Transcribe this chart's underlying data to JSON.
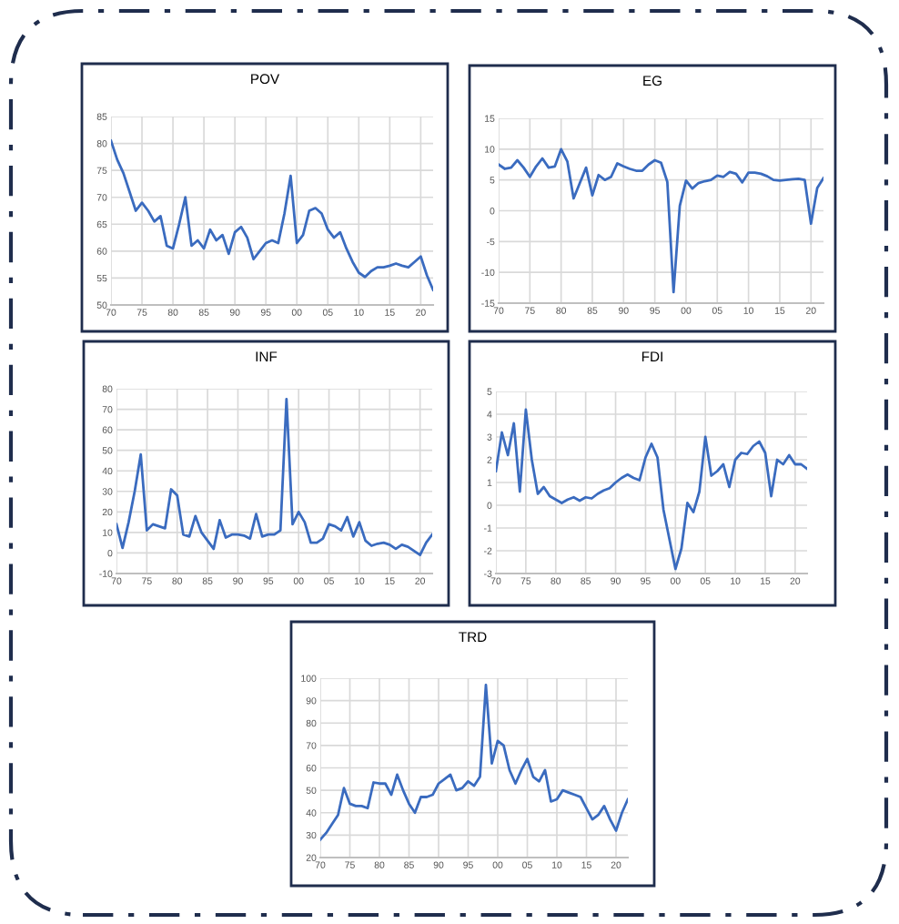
{
  "chart_data": [
    {
      "type": "line",
      "title": "POV",
      "x": [
        1970,
        1971,
        1972,
        1973,
        1974,
        1975,
        1976,
        1977,
        1978,
        1979,
        1980,
        1981,
        1982,
        1983,
        1984,
        1985,
        1986,
        1987,
        1988,
        1989,
        1990,
        1991,
        1992,
        1993,
        1994,
        1995,
        1996,
        1997,
        1998,
        1999,
        2000,
        2001,
        2002,
        2003,
        2004,
        2005,
        2006,
        2007,
        2008,
        2009,
        2010,
        2011,
        2012,
        2013,
        2014,
        2015,
        2016,
        2017,
        2018,
        2019,
        2020,
        2021,
        2022
      ],
      "series": [
        {
          "color": "#3a6bbf",
          "values": [
            80.5,
            77,
            74.5,
            71,
            67.5,
            69,
            67.5,
            65.5,
            66.5,
            61,
            60.5,
            65,
            70,
            61,
            62,
            60.5,
            64,
            62,
            63,
            59.5,
            63.5,
            64.5,
            62.5,
            58.5,
            60,
            61.5,
            62,
            61.5,
            67,
            74,
            61.5,
            63,
            67.5,
            68,
            67,
            64,
            62.5,
            63.5,
            60.5,
            58,
            56,
            55.2,
            56.3,
            57,
            57,
            57.3,
            57.7,
            57.3,
            57,
            58,
            59,
            55.5,
            52.8
          ]
        }
      ],
      "xlim": [
        1970,
        2022
      ],
      "xticks": [
        {
          "value": 1970,
          "label": "70"
        },
        {
          "value": 1975,
          "label": "75"
        },
        {
          "value": 1980,
          "label": "80"
        },
        {
          "value": 1985,
          "label": "85"
        },
        {
          "value": 1990,
          "label": "90"
        },
        {
          "value": 1995,
          "label": "95"
        },
        {
          "value": 2000,
          "label": "00"
        },
        {
          "value": 2005,
          "label": "05"
        },
        {
          "value": 2010,
          "label": "10"
        },
        {
          "value": 2015,
          "label": "15"
        },
        {
          "value": 2020,
          "label": "20"
        }
      ],
      "ylim": [
        50,
        85
      ],
      "yticks": [
        50,
        55,
        60,
        65,
        70,
        75,
        80,
        85
      ],
      "grid": true
    },
    {
      "type": "line",
      "title": "EG",
      "x": [
        1970,
        1971,
        1972,
        1973,
        1974,
        1975,
        1976,
        1977,
        1978,
        1979,
        1980,
        1981,
        1982,
        1983,
        1984,
        1985,
        1986,
        1987,
        1988,
        1989,
        1990,
        1991,
        1992,
        1993,
        1994,
        1995,
        1996,
        1997,
        1998,
        1999,
        2000,
        2001,
        2002,
        2003,
        2004,
        2005,
        2006,
        2007,
        2008,
        2009,
        2010,
        2011,
        2012,
        2013,
        2014,
        2015,
        2016,
        2017,
        2018,
        2019,
        2020,
        2021,
        2022
      ],
      "series": [
        {
          "color": "#3a6bbf",
          "values": [
            7.5,
            6.8,
            7,
            8.2,
            7,
            5.5,
            7.2,
            8.5,
            7,
            7.2,
            10,
            8,
            2,
            4.5,
            7,
            2.5,
            5.8,
            5,
            5.5,
            7.7,
            7.2,
            6.8,
            6.5,
            6.5,
            7.5,
            8.2,
            7.8,
            4.7,
            -13.2,
            0.8,
            4.9,
            3.6,
            4.5,
            4.8,
            5,
            5.7,
            5.5,
            6.3,
            6,
            4.6,
            6.2,
            6.2,
            6,
            5.6,
            5,
            4.9,
            5,
            5.1,
            5.2,
            5,
            -2.1,
            3.7,
            5.3
          ]
        }
      ],
      "xlim": [
        1970,
        2022
      ],
      "xticks": [
        {
          "value": 1970,
          "label": "70"
        },
        {
          "value": 1975,
          "label": "75"
        },
        {
          "value": 1980,
          "label": "80"
        },
        {
          "value": 1985,
          "label": "85"
        },
        {
          "value": 1990,
          "label": "90"
        },
        {
          "value": 1995,
          "label": "95"
        },
        {
          "value": 2000,
          "label": "00"
        },
        {
          "value": 2005,
          "label": "05"
        },
        {
          "value": 2010,
          "label": "10"
        },
        {
          "value": 2015,
          "label": "15"
        },
        {
          "value": 2020,
          "label": "20"
        }
      ],
      "ylim": [
        -15,
        15
      ],
      "yticks": [
        {
          "value": -15,
          "label": "-15"
        },
        {
          "value": -10,
          "label": "-10"
        },
        {
          "value": -5,
          "label": "-5"
        },
        0,
        5,
        10,
        15
      ],
      "grid": true
    },
    {
      "type": "line",
      "title": "INF",
      "x": [
        1970,
        1971,
        1972,
        1973,
        1974,
        1975,
        1976,
        1977,
        1978,
        1979,
        1980,
        1981,
        1982,
        1983,
        1984,
        1985,
        1986,
        1987,
        1988,
        1989,
        1990,
        1991,
        1992,
        1993,
        1994,
        1995,
        1996,
        1997,
        1998,
        1999,
        2000,
        2001,
        2002,
        2003,
        2004,
        2005,
        2006,
        2007,
        2008,
        2009,
        2010,
        2011,
        2012,
        2013,
        2014,
        2015,
        2016,
        2017,
        2018,
        2019,
        2020,
        2021,
        2022
      ],
      "series": [
        {
          "color": "#3a6bbf",
          "values": [
            14,
            2.5,
            15,
            30,
            48,
            11,
            14,
            13,
            12,
            31,
            28,
            9,
            8,
            18,
            10,
            6,
            2,
            16,
            7.5,
            9,
            9,
            8.5,
            7,
            19,
            8,
            9,
            9,
            11,
            75,
            14,
            20,
            15,
            5,
            5,
            7,
            14,
            13,
            11,
            17.5,
            8,
            15,
            6,
            3.5,
            4.5,
            5,
            4,
            2,
            4,
            3,
            1,
            -1,
            5,
            9
          ]
        }
      ],
      "xlim": [
        1970,
        2022
      ],
      "xticks": [
        {
          "value": 1970,
          "label": "70"
        },
        {
          "value": 1975,
          "label": "75"
        },
        {
          "value": 1980,
          "label": "80"
        },
        {
          "value": 1985,
          "label": "85"
        },
        {
          "value": 1990,
          "label": "90"
        },
        {
          "value": 1995,
          "label": "95"
        },
        {
          "value": 2000,
          "label": "00"
        },
        {
          "value": 2005,
          "label": "05"
        },
        {
          "value": 2010,
          "label": "10"
        },
        {
          "value": 2015,
          "label": "15"
        },
        {
          "value": 2020,
          "label": "20"
        }
      ],
      "ylim": [
        -10,
        80
      ],
      "yticks": [
        {
          "value": -10,
          "label": "-10"
        },
        0,
        10,
        20,
        30,
        40,
        50,
        60,
        70,
        80
      ],
      "grid": true
    },
    {
      "type": "line",
      "title": "FDI",
      "x": [
        1970,
        1971,
        1972,
        1973,
        1974,
        1975,
        1976,
        1977,
        1978,
        1979,
        1980,
        1981,
        1982,
        1983,
        1984,
        1985,
        1986,
        1987,
        1988,
        1989,
        1990,
        1991,
        1992,
        1993,
        1994,
        1995,
        1996,
        1997,
        1998,
        1999,
        2000,
        2001,
        2002,
        2003,
        2004,
        2005,
        2006,
        2007,
        2008,
        2009,
        2010,
        2011,
        2012,
        2013,
        2014,
        2015,
        2016,
        2017,
        2018,
        2019,
        2020,
        2021,
        2022
      ],
      "series": [
        {
          "color": "#3a6bbf",
          "values": [
            1.5,
            3.2,
            2.2,
            3.6,
            0.6,
            4.2,
            2.0,
            0.5,
            0.8,
            0.4,
            0.25,
            0.1,
            0.25,
            0.35,
            0.2,
            0.35,
            0.3,
            0.5,
            0.65,
            0.75,
            1.0,
            1.2,
            1.35,
            1.2,
            1.1,
            2.1,
            2.7,
            2.1,
            -0.2,
            -1.5,
            -2.8,
            -1.9,
            0.1,
            -0.3,
            0.6,
            3.0,
            1.3,
            1.5,
            1.8,
            0.8,
            2.0,
            2.3,
            2.25,
            2.6,
            2.8,
            2.3,
            0.4,
            2.0,
            1.8,
            2.2,
            1.8,
            1.8,
            1.6
          ]
        }
      ],
      "xlim": [
        1970,
        2022
      ],
      "xticks": [
        {
          "value": 1970,
          "label": "70"
        },
        {
          "value": 1975,
          "label": "75"
        },
        {
          "value": 1980,
          "label": "80"
        },
        {
          "value": 1985,
          "label": "85"
        },
        {
          "value": 1990,
          "label": "90"
        },
        {
          "value": 1995,
          "label": "95"
        },
        {
          "value": 2000,
          "label": "00"
        },
        {
          "value": 2005,
          "label": "05"
        },
        {
          "value": 2010,
          "label": "10"
        },
        {
          "value": 2015,
          "label": "15"
        },
        {
          "value": 2020,
          "label": "20"
        }
      ],
      "ylim": [
        -3,
        5
      ],
      "yticks": [
        {
          "value": -3,
          "label": "-3"
        },
        {
          "value": -2,
          "label": "-2"
        },
        {
          "value": -1,
          "label": "-1"
        },
        0,
        1,
        2,
        3,
        4,
        5
      ],
      "grid": true
    },
    {
      "type": "line",
      "title": "TRD",
      "x": [
        1970,
        1971,
        1972,
        1973,
        1974,
        1975,
        1976,
        1977,
        1978,
        1979,
        1980,
        1981,
        1982,
        1983,
        1984,
        1985,
        1986,
        1987,
        1988,
        1989,
        1990,
        1991,
        1992,
        1993,
        1994,
        1995,
        1996,
        1997,
        1998,
        1999,
        2000,
        2001,
        2002,
        2003,
        2004,
        2005,
        2006,
        2007,
        2008,
        2009,
        2010,
        2011,
        2012,
        2013,
        2014,
        2015,
        2016,
        2017,
        2018,
        2019,
        2020,
        2021,
        2022
      ],
      "series": [
        {
          "color": "#3a6bbf",
          "values": [
            28,
            31,
            35,
            39,
            51,
            44,
            43,
            43,
            42,
            53.5,
            53,
            53,
            48,
            57,
            50,
            44,
            40,
            47,
            47,
            48,
            53,
            55,
            57,
            50,
            51,
            54,
            52,
            56,
            97,
            62,
            72,
            70,
            59,
            53,
            59,
            64,
            56,
            54,
            59,
            45,
            46,
            50,
            49,
            48,
            47,
            42,
            37,
            39,
            43,
            37,
            32,
            40,
            46
          ]
        }
      ],
      "xlim": [
        1970,
        2022
      ],
      "xticks": [
        {
          "value": 1970,
          "label": "70"
        },
        {
          "value": 1975,
          "label": "75"
        },
        {
          "value": 1980,
          "label": "80"
        },
        {
          "value": 1985,
          "label": "85"
        },
        {
          "value": 1990,
          "label": "90"
        },
        {
          "value": 1995,
          "label": "95"
        },
        {
          "value": 2000,
          "label": "00"
        },
        {
          "value": 2005,
          "label": "05"
        },
        {
          "value": 2010,
          "label": "10"
        },
        {
          "value": 2015,
          "label": "15"
        },
        {
          "value": 2020,
          "label": "20"
        }
      ],
      "ylim": [
        20,
        100
      ],
      "yticks": [
        20,
        30,
        40,
        50,
        60,
        70,
        80,
        90,
        100
      ],
      "grid": true
    }
  ]
}
